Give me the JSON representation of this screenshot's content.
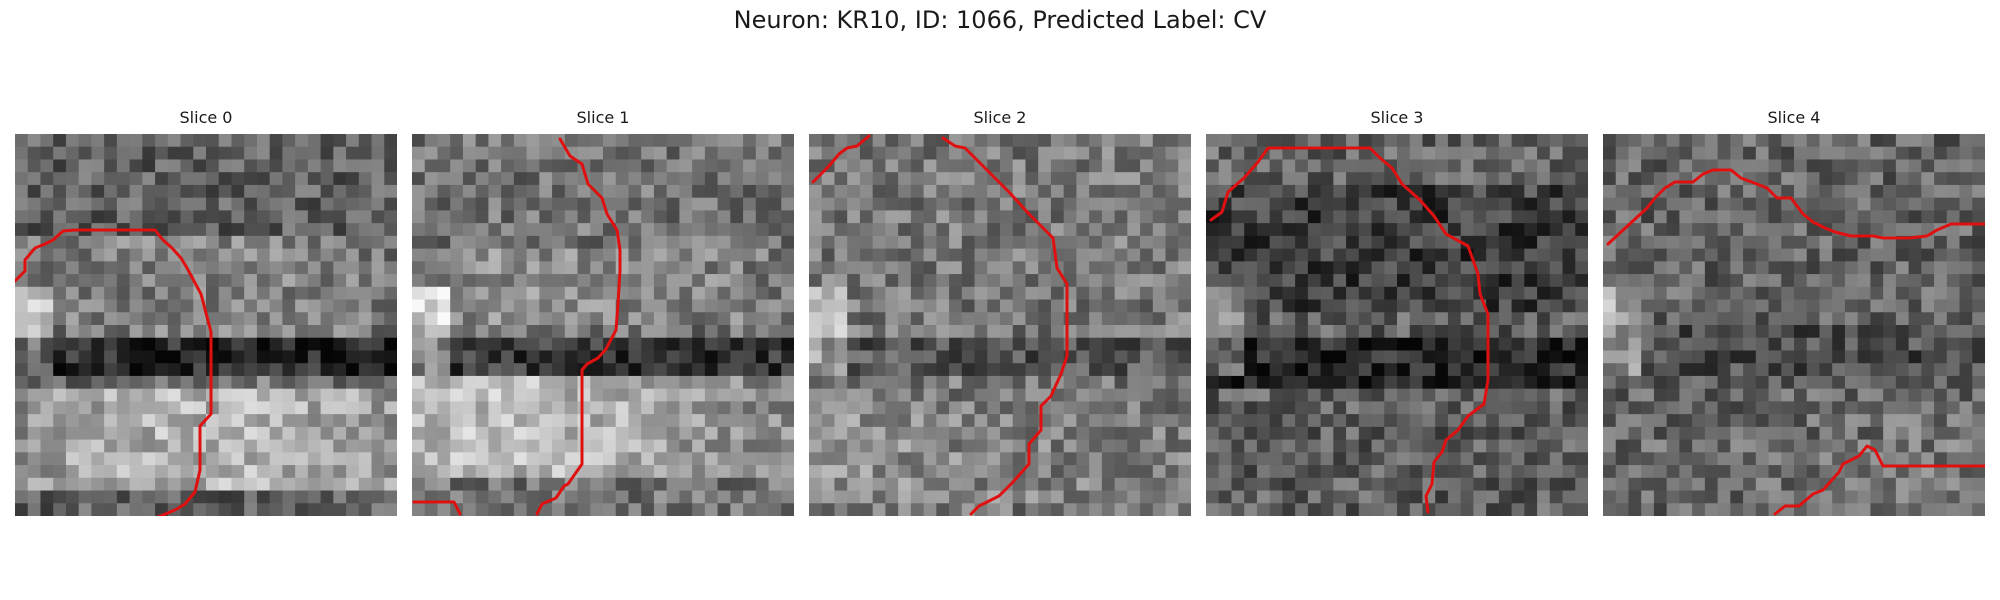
{
  "figure": {
    "title": "Neuron: KR10, ID: 1066, Predicted Label: CV",
    "contour_color": "#e01010",
    "image_style": "grayscale noisy microscopy patch, 30x30 pixel grid"
  },
  "slices": [
    {
      "label": "Slice 0"
    },
    {
      "label": "Slice 1"
    },
    {
      "label": "Slice 2"
    },
    {
      "label": "Slice 3"
    },
    {
      "label": "Slice 4"
    }
  ]
}
